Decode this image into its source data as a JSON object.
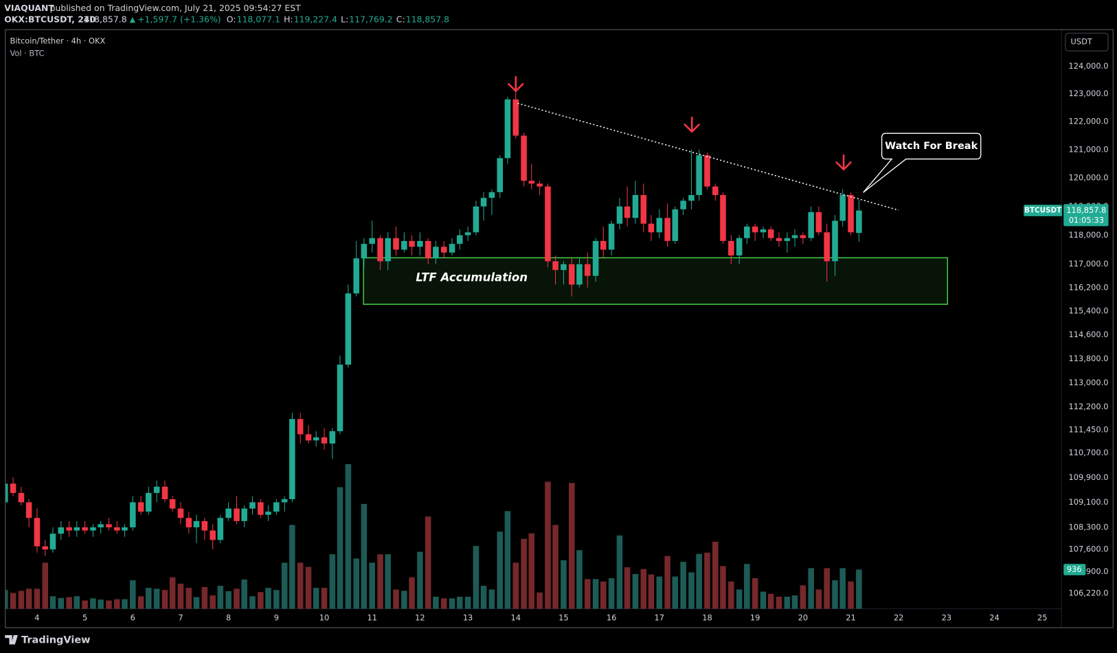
{
  "header": {
    "author": "VIAQUANT",
    "published": "published on TradingView.com, July 21, 2025 09:54:27 EST",
    "symbol": "OKX:BTCUSDT, 240",
    "last": "118,857.8",
    "change": "+1,597.7 (+1.36%)",
    "ohlc": [
      {
        "key": "O:",
        "value": "118,077.1"
      },
      {
        "key": "H:",
        "value": "119,227.4"
      },
      {
        "key": "L:",
        "value": "117,769.2"
      },
      {
        "key": "C:",
        "value": "118,857.8"
      }
    ]
  },
  "chart_data": {
    "type": "candlestick",
    "title": "Bitcoin/Tether · 4h · OKX",
    "subtitle": "Vol · BTC",
    "currency": "USDT",
    "x": [
      3.33,
      3.5,
      3.67,
      3.83,
      4,
      4.17,
      4.33,
      4.5,
      4.67,
      4.83,
      5,
      5.17,
      5.33,
      5.5,
      5.67,
      5.83,
      6,
      6.17,
      6.33,
      6.5,
      6.67,
      6.83,
      7,
      7.17,
      7.33,
      7.5,
      7.67,
      7.83,
      8,
      8.17,
      8.33,
      8.5,
      8.67,
      8.83,
      9,
      9.17,
      9.33,
      9.5,
      9.67,
      9.83,
      10,
      10.17,
      10.33,
      10.5,
      10.67,
      10.83,
      11,
      11.17,
      11.33,
      11.5,
      11.67,
      11.83,
      12,
      12.17,
      12.33,
      12.5,
      12.67,
      12.83,
      13,
      13.17,
      13.33,
      13.5,
      13.67,
      13.83,
      14,
      14.17,
      14.33,
      14.5,
      14.67,
      14.83,
      15,
      15.17,
      15.33,
      15.5,
      15.67,
      15.83,
      16,
      16.17,
      16.33,
      16.5,
      16.67,
      16.83,
      17,
      17.17,
      17.33,
      17.5,
      17.67,
      17.83,
      18,
      18.17,
      18.33,
      18.5,
      18.67,
      18.83,
      19,
      19.17,
      19.33,
      19.5,
      19.67,
      19.83,
      20,
      20.17,
      20.33,
      20.5,
      20.67,
      20.83,
      21,
      21.17
    ],
    "open": [
      109100,
      109700,
      109400,
      109100,
      108600,
      107700,
      107600,
      108100,
      108300,
      108200,
      108300,
      108200,
      108300,
      108400,
      108300,
      108200,
      108300,
      109100,
      108800,
      109400,
      109600,
      109200,
      108900,
      108600,
      108300,
      108500,
      108200,
      107900,
      108600,
      108900,
      108500,
      108900,
      109100,
      108700,
      108800,
      109100,
      109200,
      111800,
      111300,
      111100,
      111200,
      111000,
      111400,
      113600,
      116000,
      117200,
      117700,
      117900,
      117100,
      117900,
      117500,
      117800,
      117600,
      117800,
      117200,
      117600,
      117400,
      117700,
      118000,
      118100,
      119000,
      119300,
      119500,
      120700,
      122800,
      121500,
      119900,
      119800,
      119700,
      117100,
      116800,
      117000,
      116300,
      117000,
      116600,
      117800,
      117500,
      118400,
      119000,
      118600,
      119400,
      118400,
      118100,
      118600,
      117800,
      118900,
      119200,
      119400,
      120800,
      119700,
      119400,
      117800,
      117300,
      117900,
      118300,
      118100,
      118200,
      117900,
      117800,
      117900,
      118000,
      117900,
      118800,
      118100,
      117100,
      118500,
      119400,
      118077.1
    ],
    "high": [
      110000,
      109900,
      109600,
      109200,
      108900,
      107900,
      108300,
      108500,
      108500,
      108500,
      108500,
      108400,
      108500,
      108600,
      108500,
      108400,
      109300,
      109300,
      109600,
      109800,
      109800,
      109300,
      109100,
      108800,
      108700,
      108600,
      108400,
      108700,
      109100,
      109300,
      109000,
      109300,
      109200,
      109000,
      109200,
      109300,
      112000,
      112000,
      111600,
      111400,
      111500,
      111500,
      113900,
      116300,
      117800,
      117900,
      118500,
      118000,
      118100,
      118300,
      118100,
      118000,
      118100,
      117900,
      117800,
      117800,
      117900,
      118200,
      118300,
      119200,
      119500,
      119600,
      120800,
      122900,
      123200,
      121600,
      120500,
      119900,
      119800,
      117300,
      117100,
      117200,
      117200,
      117400,
      117900,
      118300,
      118500,
      119300,
      119700,
      119900,
      119800,
      118700,
      118900,
      119100,
      119000,
      119300,
      121000,
      121000,
      120900,
      119800,
      119500,
      118000,
      118000,
      118400,
      118400,
      118300,
      118300,
      118100,
      118100,
      118200,
      118100,
      119000,
      119000,
      118400,
      118700,
      119600,
      119500,
      119227.4
    ],
    "low": [
      108900,
      109300,
      109000,
      108300,
      107500,
      107400,
      107500,
      107900,
      108000,
      108000,
      108100,
      108000,
      108100,
      108200,
      108100,
      108000,
      108200,
      108700,
      108700,
      109100,
      109100,
      108800,
      108400,
      108100,
      107800,
      107900,
      107600,
      107800,
      108500,
      108400,
      108300,
      108700,
      108600,
      108500,
      108700,
      108800,
      109100,
      111000,
      111000,
      110900,
      110800,
      110500,
      111300,
      113500,
      115900,
      116900,
      117400,
      116800,
      116800,
      117300,
      117400,
      117300,
      117300,
      117000,
      117000,
      117200,
      117300,
      117500,
      117800,
      118000,
      118500,
      118700,
      119300,
      120500,
      121400,
      119700,
      119600,
      119400,
      116900,
      116300,
      116300,
      115900,
      116200,
      116200,
      116400,
      117200,
      117300,
      118200,
      118300,
      118400,
      118100,
      117800,
      117900,
      117600,
      117700,
      118700,
      118900,
      119200,
      119600,
      119200,
      117700,
      117000,
      117000,
      117700,
      117800,
      117900,
      117800,
      117600,
      117400,
      117600,
      117700,
      117800,
      118000,
      116400,
      116600,
      118300,
      118000,
      117769.2
    ],
    "close": [
      109700,
      109400,
      109100,
      108600,
      107700,
      107600,
      108100,
      108300,
      108200,
      108300,
      108200,
      108300,
      108400,
      108300,
      108200,
      108300,
      109100,
      108800,
      109400,
      109600,
      109200,
      108900,
      108600,
      108300,
      108500,
      108200,
      107900,
      108600,
      108900,
      108500,
      108900,
      109100,
      108700,
      108800,
      109100,
      109200,
      111800,
      111300,
      111100,
      111200,
      111000,
      111400,
      113600,
      116000,
      117200,
      117700,
      117900,
      117100,
      117900,
      117500,
      117800,
      117600,
      117800,
      117200,
      117600,
      117400,
      117700,
      118000,
      118100,
      119000,
      119300,
      119500,
      120700,
      122800,
      121500,
      119900,
      119800,
      119700,
      117100,
      116800,
      117000,
      116300,
      117000,
      116600,
      117800,
      117500,
      118400,
      119000,
      118600,
      119400,
      118400,
      118100,
      118600,
      117800,
      118900,
      119200,
      119400,
      120800,
      119700,
      119400,
      117800,
      117300,
      117900,
      118300,
      118100,
      118200,
      117900,
      117800,
      117900,
      118000,
      117900,
      118800,
      118100,
      117100,
      118500,
      119400,
      118100,
      118857.8
    ],
    "volume": [
      450,
      380,
      430,
      480,
      480,
      1100,
      300,
      260,
      280,
      300,
      200,
      250,
      220,
      200,
      230,
      230,
      680,
      300,
      500,
      480,
      450,
      750,
      600,
      500,
      280,
      520,
      320,
      550,
      420,
      480,
      700,
      300,
      400,
      500,
      450,
      1100,
      2000,
      1100,
      1000,
      500,
      500,
      1300,
      2900,
      3450,
      1200,
      2500,
      1100,
      1300,
      1300,
      460,
      430,
      750,
      1360,
      2200,
      290,
      250,
      250,
      290,
      290,
      1500,
      550,
      460,
      1840,
      2330,
      1100,
      1670,
      1800,
      390,
      3030,
      2000,
      1160,
      3000,
      1400,
      710,
      710,
      650,
      730,
      1750,
      990,
      830,
      950,
      820,
      770,
      1260,
      770,
      1120,
      870,
      1310,
      1340,
      1600,
      1020,
      650,
      460,
      1070,
      730,
      410,
      360,
      290,
      290,
      320,
      560,
      970,
      460,
      970,
      680,
      970,
      650,
      936
    ],
    "xlim": [
      3.345,
      25.4
    ],
    "xticks": [
      4,
      5,
      6,
      7,
      8,
      9,
      10,
      11,
      12,
      13,
      14,
      15,
      16,
      17,
      18,
      19,
      20,
      21,
      22,
      23,
      24,
      25
    ],
    "ylim": [
      105740,
      125330
    ],
    "log_scale": true,
    "yticks": [
      {
        "value": 124000,
        "label": "124,000.0"
      },
      {
        "value": 123000,
        "label": "123,000.0"
      },
      {
        "value": 122000,
        "label": "122,000.0"
      },
      {
        "value": 121000,
        "label": "121,000.0"
      },
      {
        "value": 120000,
        "label": "120,000.0"
      },
      {
        "value": 119000,
        "label": "119,000.0"
      },
      {
        "value": 118000,
        "label": "118,000.0"
      },
      {
        "value": 117000,
        "label": "117,000.0"
      },
      {
        "value": 116200,
        "label": "116,200.0"
      },
      {
        "value": 115400,
        "label": "115,400.0"
      },
      {
        "value": 114600,
        "label": "114,600.0"
      },
      {
        "value": 113800,
        "label": "113,800.0"
      },
      {
        "value": 113000,
        "label": "113,000.0"
      },
      {
        "value": 112200,
        "label": "112,200.0"
      },
      {
        "value": 111450,
        "label": "111,450.0"
      },
      {
        "value": 110700,
        "label": "110,700.0"
      },
      {
        "value": 109900,
        "label": "109,900.0"
      },
      {
        "value": 109100,
        "label": "109,100.0"
      },
      {
        "value": 108300,
        "label": "108,300.0"
      },
      {
        "value": 107600,
        "label": "107,600.0"
      },
      {
        "value": 106900,
        "label": "106,900.0"
      },
      {
        "value": 106220,
        "label": "106,220.0"
      }
    ],
    "y2lim": [
      0,
      13800
    ],
    "grid": false,
    "colors": {
      "up": "#22ab94",
      "down": "#f23645",
      "volume_up": "#1d5b56",
      "volume_down": "#76282b"
    },
    "last_price": {
      "symbol": "BTCUSDT",
      "label": "118,857.8",
      "countdown": "01:05:33"
    },
    "zone": {
      "text": "LTF Accumulation",
      "x": [
        10.82,
        23.02
      ],
      "y": [
        115630,
        117220
      ],
      "color": "#43c943"
    },
    "trendline": {
      "x": [
        14.04,
        22.0
      ],
      "y": [
        122660,
        118870
      ]
    },
    "arrows": {
      "x": [
        14.0,
        17.68,
        20.85
      ],
      "y": [
        123100,
        121640,
        120300
      ],
      "color": "#f23645"
    },
    "callout": {
      "text": "Watch For Break",
      "x": 21.26,
      "y": 119490
    }
  },
  "footer": {
    "brand": "TradingView"
  }
}
